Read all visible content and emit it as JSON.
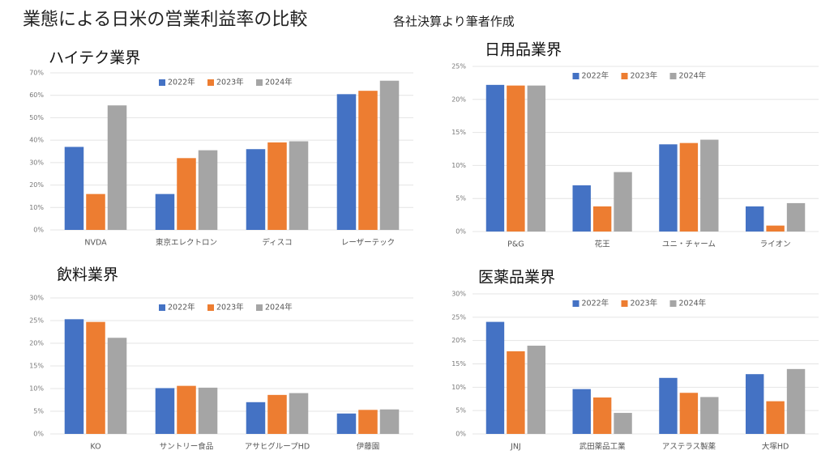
{
  "header": {
    "title": "業態による日米の営業利益率の比較",
    "note": "各社決算より筆者作成"
  },
  "chart_data": [
    {
      "type": "bar",
      "title": "ハイテク業界",
      "categories": [
        "NVDA",
        "東京エレクトロン",
        "ディスコ",
        "レーザーテック"
      ],
      "series": [
        {
          "name": "2022年",
          "color": "#4472c4",
          "values": [
            37,
            16,
            36,
            60.5
          ]
        },
        {
          "name": "2023年",
          "color": "#ed7d31",
          "values": [
            16,
            32,
            39,
            62
          ]
        },
        {
          "name": "2024年",
          "color": "#a5a5a5",
          "values": [
            55.5,
            35.5,
            39.5,
            66.5
          ]
        }
      ],
      "ylim": [
        0,
        70
      ],
      "yticks": [
        {
          "value": 0,
          "label": "0%"
        },
        {
          "value": 10,
          "label": "10%"
        },
        {
          "value": 20,
          "label": "20%"
        },
        {
          "value": 30,
          "label": "30%"
        },
        {
          "value": 40,
          "label": "40%"
        },
        {
          "value": 50,
          "label": "50%"
        },
        {
          "value": 60,
          "label": "60%"
        },
        {
          "value": 70,
          "label": "70%"
        }
      ],
      "grid": true,
      "legend": "top"
    },
    {
      "type": "bar",
      "title": "日用品業界",
      "categories": [
        "P&G",
        "花王",
        "ユニ・チャーム",
        "ライオン"
      ],
      "series": [
        {
          "name": "2022年",
          "color": "#4472c4",
          "values": [
            22.2,
            7,
            13.2,
            3.8
          ]
        },
        {
          "name": "2023年",
          "color": "#ed7d31",
          "values": [
            22.1,
            3.8,
            13.4,
            0.9
          ]
        },
        {
          "name": "2024年",
          "color": "#a5a5a5",
          "values": [
            22.1,
            9,
            13.9,
            4.3
          ]
        }
      ],
      "ylim": [
        0,
        25
      ],
      "yticks": [
        {
          "value": 0,
          "label": "0%"
        },
        {
          "value": 5,
          "label": "5%"
        },
        {
          "value": 10,
          "label": "10%"
        },
        {
          "value": 15,
          "label": "15%"
        },
        {
          "value": 20,
          "label": "20%"
        },
        {
          "value": 25,
          "label": "25%"
        }
      ],
      "grid": true,
      "legend": "top"
    },
    {
      "type": "bar",
      "title": "飲料業界",
      "categories": [
        "KO",
        "サントリー食品",
        "アサヒグループHD",
        "伊藤園"
      ],
      "series": [
        {
          "name": "2022年",
          "color": "#4472c4",
          "values": [
            25.3,
            10.1,
            7,
            4.5
          ]
        },
        {
          "name": "2023年",
          "color": "#ed7d31",
          "values": [
            24.7,
            10.6,
            8.6,
            5.3
          ]
        },
        {
          "name": "2024年",
          "color": "#a5a5a5",
          "values": [
            21.2,
            10.2,
            9,
            5.4
          ]
        }
      ],
      "ylim": [
        0,
        30
      ],
      "yticks": [
        {
          "value": 0,
          "label": "0%"
        },
        {
          "value": 5,
          "label": "5%"
        },
        {
          "value": 10,
          "label": "10%"
        },
        {
          "value": 15,
          "label": "15%"
        },
        {
          "value": 20,
          "label": "20%"
        },
        {
          "value": 25,
          "label": "25%"
        },
        {
          "value": 30,
          "label": "30%"
        }
      ],
      "grid": true,
      "legend": "top"
    },
    {
      "type": "bar",
      "title": "医薬品業界",
      "categories": [
        "JNJ",
        "武田薬品工業",
        "アステラス製薬",
        "大塚HD"
      ],
      "series": [
        {
          "name": "2022年",
          "color": "#4472c4",
          "values": [
            24,
            9.6,
            12,
            12.8
          ]
        },
        {
          "name": "2023年",
          "color": "#ed7d31",
          "values": [
            17.7,
            7.8,
            8.8,
            7
          ]
        },
        {
          "name": "2024年",
          "color": "#a5a5a5",
          "values": [
            18.9,
            4.5,
            7.9,
            13.9
          ]
        }
      ],
      "ylim": [
        0,
        30
      ],
      "yticks": [
        {
          "value": 0,
          "label": "0%"
        },
        {
          "value": 5,
          "label": "5%"
        },
        {
          "value": 10,
          "label": "10%"
        },
        {
          "value": 15,
          "label": "15%"
        },
        {
          "value": 20,
          "label": "20%"
        },
        {
          "value": 25,
          "label": "25%"
        },
        {
          "value": 30,
          "label": "30%"
        }
      ],
      "grid": true,
      "legend": "top"
    }
  ]
}
